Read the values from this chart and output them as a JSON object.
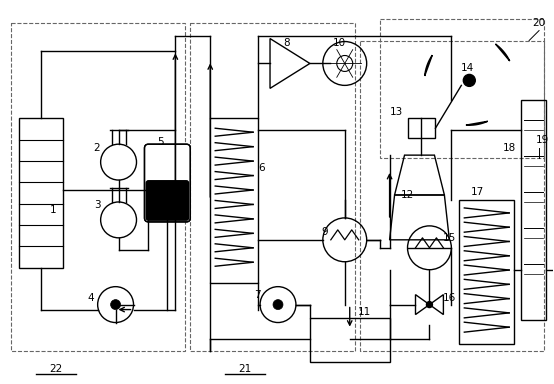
{
  "fig_width": 5.54,
  "fig_height": 3.84,
  "dpi": 100,
  "bg_color": "#ffffff",
  "line_color": "#000000",
  "dashed_color": "#666666"
}
